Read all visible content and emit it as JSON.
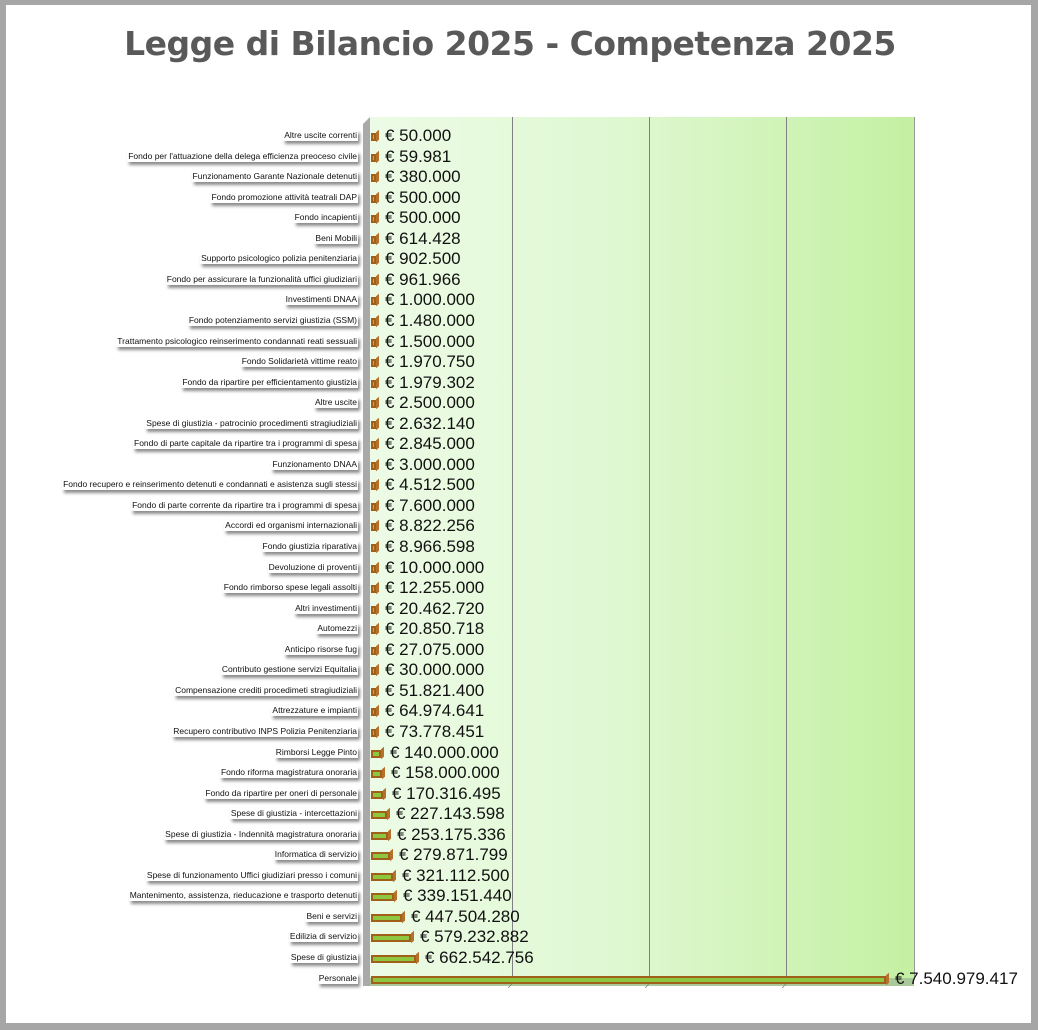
{
  "chart_data": {
    "type": "bar",
    "orientation": "horizontal",
    "title": "Legge di Bilancio 2025 - Competenza 2025",
    "xlabel": "",
    "ylabel": "",
    "grid": true,
    "legend": null,
    "currency": "€",
    "xlim": [
      0,
      8000000000
    ],
    "categories": [
      "Altre uscite correnti",
      "Fondo per l'attuazione della delega efficienza preoceso civile",
      "Funzionamento Garante Nazionale detenuti",
      "Fondo promozione attività teatrali DAP",
      "Fondo incapienti",
      "Beni Mobili",
      "Supporto psicologico polizia penitenziaria",
      "Fondo per assicurare la funzionalità uffici giudiziari",
      "Investimenti DNAA",
      "Fondo potenziamento servizi giustizia (SSM)",
      "Trattamento psicologico reinserimento condannati reati sessuali",
      "Fondo Solidarietà vittime reato",
      "Fondo da ripartire per efficientamento giustizia",
      "Altre uscite",
      "Spese di giustizia - patrocinio procedimenti stragiudiziali",
      "Fondo di parte capitale da ripartire tra i programmi di spesa",
      "Funzionamento DNAA",
      "Fondo recupero e reinserimento detenuti e condannati e asistenza sugli stessi",
      "Fondo di parte corrente da ripartire tra i programmi di spesa",
      "Accordi ed organismi internazionali",
      "Fondo giustizia riparativa",
      "Devoluzione di proventi",
      "Fondo rimborso spese legali assolti",
      "Altri investimenti",
      "Automezzi",
      "Anticipo risorse fug",
      "Contributo gestione servizi Equitalia",
      "Compensazione crediti procedimeti stragiudiziali",
      "Attrezzature e impianti",
      "Recupero contributivo INPS Polizia Penitenziaria",
      "Rimborsi Legge Pinto",
      "Fondo riforma magistratura onoraria",
      "Fondo da ripartire per oneri di personale",
      "Spese di giustizia - intercettazioni",
      "Spese di giustizia - Indennità magistratura onoraria",
      "Informatica di servizio",
      "Spese di funzionamento Uffici giudiziari presso i comuni",
      "Mantenimento, assistenza, rieducazione e trasporto detenuti",
      "Beni e servizi",
      "Edilizia di servizio",
      "Spese di giustizia",
      "Personale"
    ],
    "values": [
      50000,
      59981,
      380000,
      500000,
      500000,
      614428,
      902500,
      961966,
      1000000,
      1480000,
      1500000,
      1970750,
      1979302,
      2500000,
      2632140,
      2845000,
      3000000,
      4512500,
      7600000,
      8822256,
      8966598,
      10000000,
      12255000,
      20462720,
      20850718,
      27075000,
      30000000,
      51821400,
      64974641,
      73778451,
      140000000,
      158000000,
      170316495,
      227143598,
      253175336,
      279871799,
      321112500,
      339151440,
      447504280,
      579232882,
      662542756,
      7540979417
    ],
    "data_labels": [
      "€ 50.000",
      "€ 59.981",
      "€ 380.000",
      "€ 500.000",
      "€ 500.000",
      "€ 614.428",
      "€ 902.500",
      "€ 961.966",
      "€ 1.000.000",
      "€ 1.480.000",
      "€ 1.500.000",
      "€ 1.970.750",
      "€ 1.979.302",
      "€ 2.500.000",
      "€ 2.632.140",
      "€ 2.845.000",
      "€ 3.000.000",
      "€ 4.512.500",
      "€ 7.600.000",
      "€ 8.822.256",
      "€ 8.966.598",
      "€ 10.000.000",
      "€ 12.255.000",
      "€ 20.462.720",
      "€ 20.850.718",
      "€ 27.075.000",
      "€ 30.000.000",
      "€ 51.821.400",
      "€ 64.974.641",
      "€ 73.778.451",
      "€ 140.000.000",
      "€ 158.000.000",
      "€ 170.316.495",
      "€ 227.143.598",
      "€ 253.175.336",
      "€ 279.871.799",
      "€ 321.112.500",
      "€ 339.151.440",
      "€ 447.504.280",
      "€ 579.232.882",
      "€ 662.542.756",
      "€ 7.540.979.417"
    ],
    "colors": {
      "bar_fill": "#8dc63f",
      "bar_edge": "#a0601a",
      "plot_bg_left": "#edfbe6",
      "plot_bg_right": "#c4f0a2",
      "title": "#595959"
    }
  }
}
